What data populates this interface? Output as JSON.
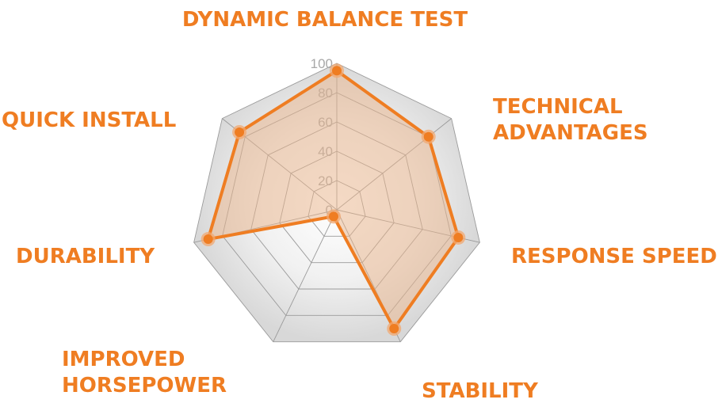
{
  "colors": {
    "accent": "#ef7d22",
    "grid": "#9a9a9a",
    "tick": "#a8a8a8",
    "fill": "#e9b48a"
  },
  "chart_data": {
    "type": "radar",
    "categories": [
      "DYNAMIC BALANCE TEST",
      "TECHNICAL ADVANTAGES",
      "RESPONSE SPEED",
      "STABILITY",
      "IMPROVED HORSEPOWER",
      "DURABILITY",
      "QUICK INSTALL"
    ],
    "category_lines": [
      [
        "DYNAMIC BALANCE TEST"
      ],
      [
        "TECHNICAL",
        "ADVANTAGES"
      ],
      [
        "RESPONSE SPEED"
      ],
      [
        "STABILITY"
      ],
      [
        "IMPROVED",
        "HORSEPOWER"
      ],
      [
        "DURABILITY"
      ],
      [
        "QUICK INSTALL"
      ]
    ],
    "series": [
      {
        "values": [
          95,
          80,
          85,
          90,
          5,
          90,
          85
        ]
      }
    ],
    "r_ticks": [
      "0",
      "20",
      "40",
      "60",
      "80",
      "100"
    ],
    "r_range": [
      0,
      100
    ],
    "grid": true,
    "legend": "none"
  }
}
